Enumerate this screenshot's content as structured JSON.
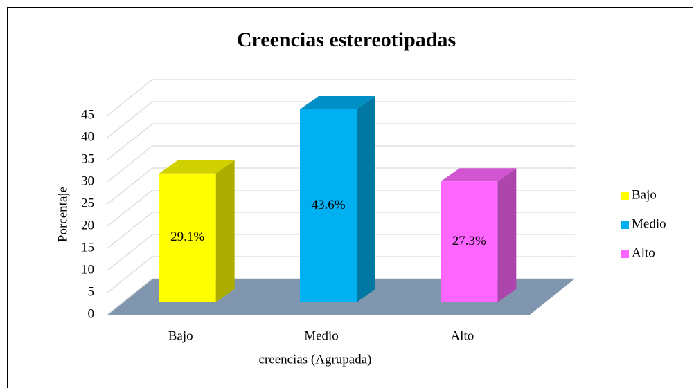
{
  "chart_data": {
    "type": "bar3d",
    "title": "Creencias estereotipadas",
    "categories": [
      "Bajo",
      "Medio",
      "Alto"
    ],
    "series": [
      {
        "name": "Bajo",
        "color": "#ffff00"
      },
      {
        "name": "Medio",
        "color": "#00b0f0"
      },
      {
        "name": "Alto",
        "color": "#ff66ff"
      }
    ],
    "values": [
      29.1,
      43.6,
      27.3
    ],
    "value_labels": [
      "29.1%",
      "43.6%",
      "27.3%"
    ],
    "x_label": "creencias (Agrupada)",
    "y_label": "Porcentaje",
    "ylim": [
      0,
      45
    ],
    "yticks": [
      0,
      5,
      10,
      15,
      20,
      25,
      30,
      35,
      40,
      45
    ],
    "grid": true,
    "legend": "right"
  }
}
